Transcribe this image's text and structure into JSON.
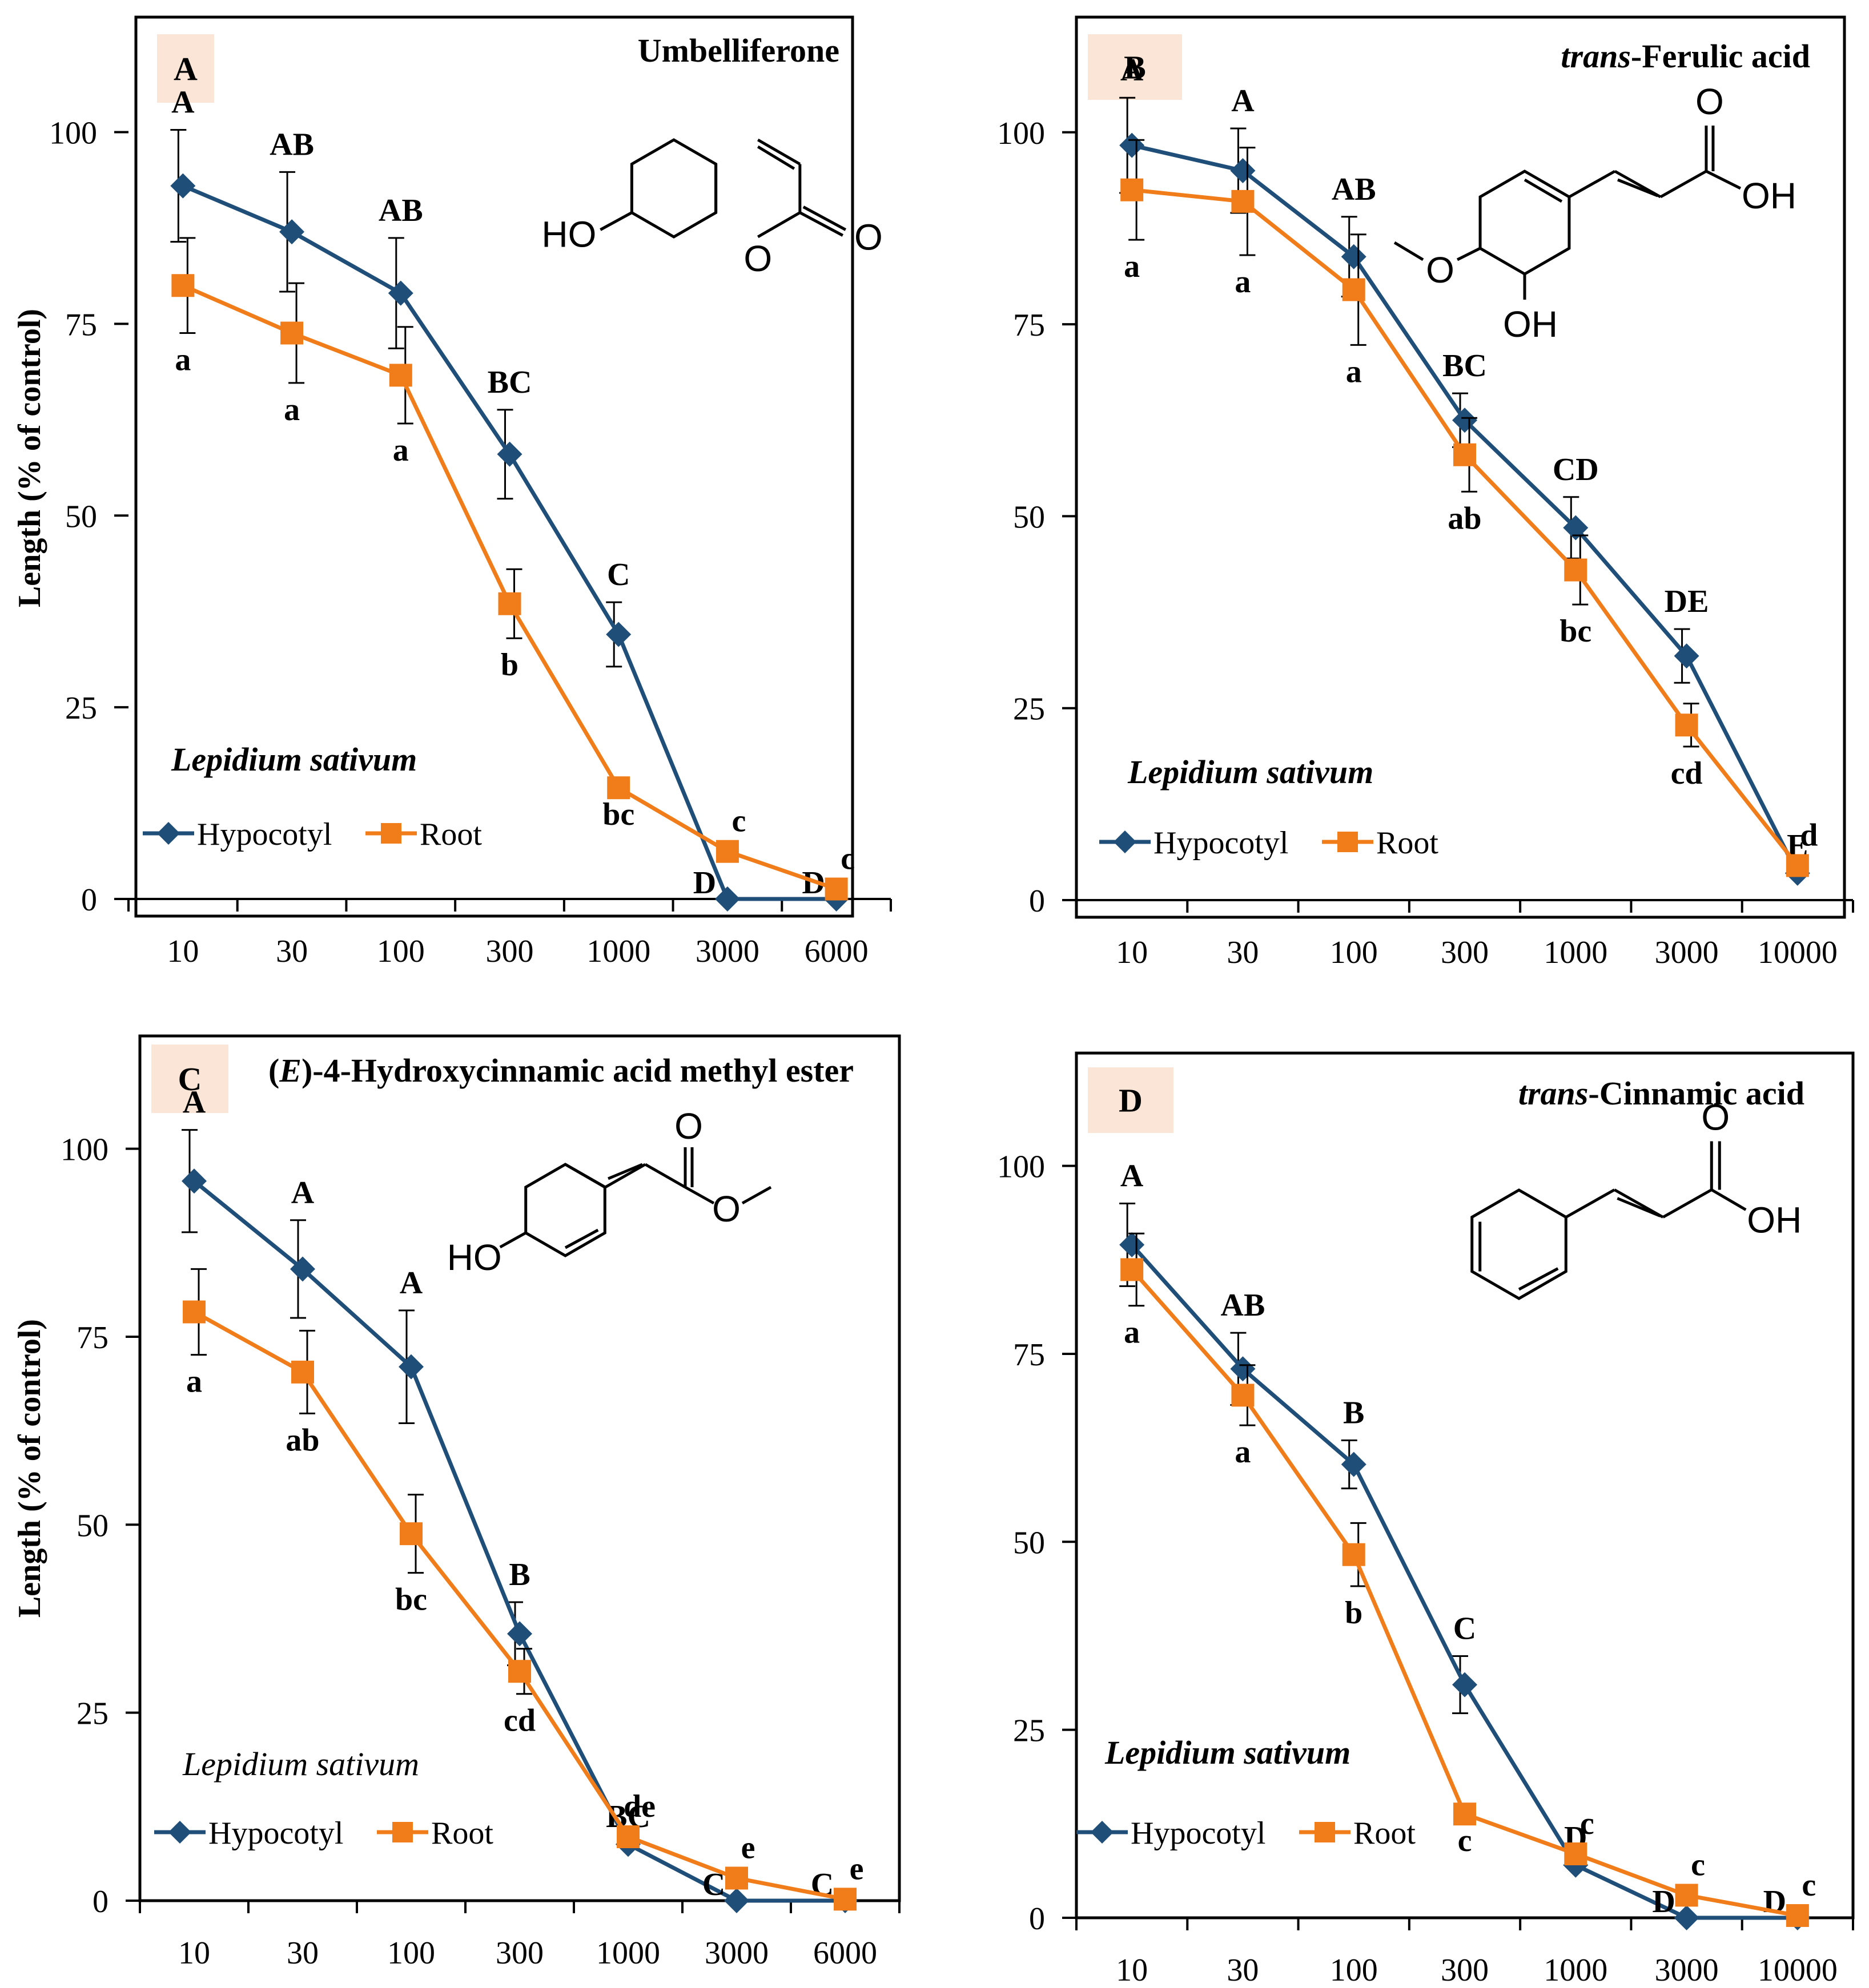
{
  "colors": {
    "hypocotyl": "#1f4e79",
    "root": "#f07d1a",
    "panel_label_bg": "#fbe5d6",
    "axis": "#000000"
  },
  "chart_data": [
    {
      "type": "line",
      "panel_label": "A",
      "title": "Umbelliferone",
      "species": "Lepidium sativum",
      "ylabel": "Length (% of control)",
      "xlabel": "",
      "categories": [
        "10",
        "30",
        "100",
        "300",
        "1000",
        "3000",
        "6000"
      ],
      "ylim": [
        0,
        115
      ],
      "yticks": [
        0,
        25,
        50,
        75,
        100
      ],
      "series": [
        {
          "name": "Hypocotyl",
          "values": [
            93,
            87,
            79,
            58,
            34.5,
            0,
            0
          ],
          "errors": [
            7.3,
            7.8,
            7.2,
            5.8,
            4.2,
            0,
            0
          ],
          "letters": [
            "A",
            "AB",
            "AB",
            "BC",
            "C",
            "D",
            "D"
          ]
        },
        {
          "name": "Root",
          "values": [
            80,
            73.8,
            68.3,
            38.5,
            14.5,
            6.2,
            1.3
          ],
          "errors": [
            6.2,
            6.5,
            6.3,
            4.5,
            0,
            0,
            0
          ],
          "letters": [
            "a",
            "a",
            "a",
            "b",
            "bc",
            "c",
            "c"
          ]
        }
      ],
      "structure": {
        "labels": [
          "HO",
          "O",
          "O"
        ]
      }
    },
    {
      "type": "line",
      "panel_label": "B",
      "title_italic": "trans",
      "title": "-Ferulic acid",
      "species": "Lepidium sativum",
      "ylabel": "",
      "xlabel": "",
      "categories": [
        "10",
        "30",
        "100",
        "300",
        "1000",
        "3000",
        "10000"
      ],
      "ylim": [
        0,
        115
      ],
      "yticks": [
        0,
        25,
        50,
        75,
        100
      ],
      "series": [
        {
          "name": "Hypocotyl",
          "values": [
            98.3,
            95,
            83.8,
            62.5,
            48.5,
            31.8,
            3.5
          ],
          "errors": [
            6.2,
            5.5,
            5.2,
            3.5,
            4,
            3.5,
            0
          ],
          "letters": [
            "A",
            "A",
            "AB",
            "BC",
            "CD",
            "DE",
            "E"
          ]
        },
        {
          "name": "Root",
          "values": [
            92.5,
            91,
            79.5,
            58,
            43,
            22.8,
            4.5
          ],
          "errors": [
            6.5,
            7,
            7.2,
            4.8,
            4.5,
            2.8,
            0
          ],
          "letters": [
            "a",
            "a",
            "a",
            "ab",
            "bc",
            "cd",
            "d"
          ]
        }
      ],
      "structure": {
        "labels": [
          "O",
          "OH",
          "O",
          "OH"
        ]
      }
    },
    {
      "type": "line",
      "panel_label": "C",
      "title_prefix": "(",
      "title_italic": "E",
      "title": ")-4-Hydroxycinnamic acid methyl ester",
      "species": "Lepidium sativum",
      "ylabel": "Length (% of control)",
      "xlabel": "",
      "categories": [
        "10",
        "30",
        "100",
        "300",
        "1000",
        "3000",
        "6000"
      ],
      "ylim": [
        0,
        115
      ],
      "yticks": [
        0,
        25,
        50,
        75,
        100
      ],
      "series": [
        {
          "name": "Hypocotyl",
          "values": [
            95.7,
            84,
            71,
            35.5,
            7.5,
            0,
            0
          ],
          "errors": [
            6.8,
            6.5,
            7.5,
            4.2,
            0,
            0,
            0
          ],
          "letters": [
            "A",
            "A",
            "A",
            "B",
            "BC",
            "C",
            "C"
          ]
        },
        {
          "name": "Root",
          "values": [
            78.3,
            70.3,
            48.8,
            30.5,
            8.5,
            3,
            0.2
          ],
          "errors": [
            5.7,
            5.5,
            5.2,
            3,
            0,
            0,
            0
          ],
          "letters": [
            "a",
            "ab",
            "bc",
            "cd",
            "de",
            "e",
            "e"
          ]
        }
      ],
      "structure": {
        "labels": [
          "HO",
          "O",
          "O"
        ]
      }
    },
    {
      "type": "line",
      "panel_label": "D",
      "title_italic": "trans",
      "title": "-Cinnamic acid",
      "species": "Lepidium sativum",
      "ylabel": "",
      "xlabel": "",
      "categories": [
        "10",
        "30",
        "100",
        "300",
        "1000",
        "3000",
        "10000"
      ],
      "ylim": [
        0,
        115
      ],
      "yticks": [
        0,
        25,
        50,
        75,
        100
      ],
      "series": [
        {
          "name": "Hypocotyl",
          "values": [
            89.5,
            73,
            60.3,
            31,
            7,
            0,
            0
          ],
          "errors": [
            5.5,
            4.8,
            3.2,
            3.8,
            0,
            0,
            0
          ],
          "letters": [
            "A",
            "AB",
            "B",
            "C",
            "D",
            "D",
            "D"
          ]
        },
        {
          "name": "Root",
          "values": [
            86.2,
            69.5,
            48.3,
            13.8,
            8.5,
            3,
            0.3
          ],
          "errors": [
            4.8,
            4,
            4.2,
            0,
            0,
            0,
            0
          ],
          "letters": [
            "a",
            "a",
            "b",
            "c",
            "c",
            "c",
            "c"
          ]
        }
      ],
      "structure": {
        "labels": [
          "O",
          "OH"
        ]
      }
    }
  ]
}
